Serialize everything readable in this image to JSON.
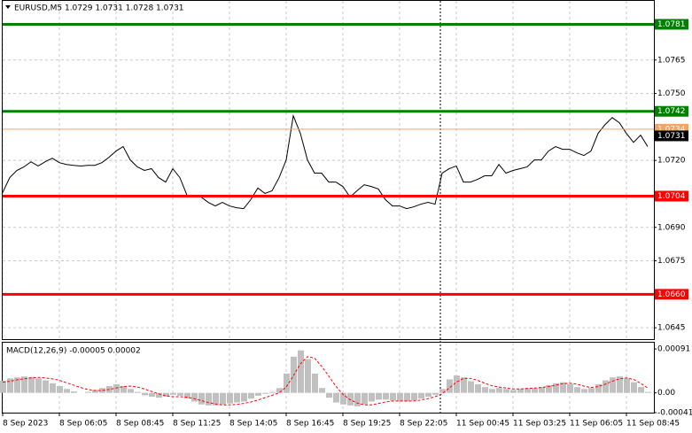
{
  "chart_data": [
    {
      "type": "line",
      "title": "EURUSD,M5  1.0729 1.0731 1.0728 1.0731",
      "x_labels": [
        "8 Sep 2023",
        "8 Sep 06:05",
        "8 Sep 08:45",
        "8 Sep 11:25",
        "8 Sep 14:05",
        "8 Sep 16:45",
        "8 Sep 19:25",
        "8 Sep 22:05",
        "11 Sep 00:45",
        "11 Sep 03:25",
        "11 Sep 06:05",
        "11 Sep 08:45"
      ],
      "series": [
        {
          "color": "#000000",
          "values": [
            1.07056,
            1.07123,
            1.07155,
            1.07171,
            1.07194,
            1.07175,
            1.07194,
            1.0721,
            1.0719,
            1.07182,
            1.07178,
            1.07175,
            1.07178,
            1.07178,
            1.0719,
            1.07214,
            1.07242,
            1.07262,
            1.07202,
            1.07171,
            1.07155,
            1.07163,
            1.07123,
            1.07103,
            1.07163,
            1.07123,
            1.07044,
            1.07036,
            1.07036,
            1.07012,
            1.06996,
            1.07012,
            1.06996,
            1.06988,
            1.06984,
            1.07024,
            1.07076,
            1.07052,
            1.07064,
            1.07123,
            1.07202,
            1.074,
            1.07321,
            1.07202,
            1.07143,
            1.07143,
            1.07103,
            1.07103,
            1.07083,
            1.07036,
            1.07064,
            1.07091,
            1.07083,
            1.07072,
            1.07024,
            1.06996,
            1.06996,
            1.06984,
            1.06992,
            1.07004,
            1.07012,
            1.07004,
            1.07143,
            1.07163,
            1.07175,
            1.07103,
            1.07103,
            1.07115,
            1.07131,
            1.07131,
            1.07182,
            1.07143,
            1.07155,
            1.07163,
            1.07171,
            1.07202,
            1.07202,
            1.07242,
            1.07262,
            1.0725,
            1.0725,
            1.07234,
            1.07222,
            1.07242,
            1.07321,
            1.07361,
            1.07392,
            1.07369,
            1.07321,
            1.07281,
            1.07313,
            1.07262
          ]
        }
      ],
      "ylim": [
        1.06399,
        1.07915
      ],
      "yticks": [
        1.0765,
        {
          "value": 1.075,
          "label": "1.0750"
        },
        {
          "value": 1.072,
          "label": "1.0720"
        },
        {
          "value": 1.069,
          "label": "1.0690"
        },
        1.0675,
        1.0645
      ],
      "grid": true,
      "levels": [
        {
          "value": 1.0781,
          "color": "#008000"
        },
        {
          "value": 1.0742,
          "color": "#008000"
        },
        {
          "value": 1.0734,
          "color": "#f4a460"
        },
        {
          "value": 1.0731,
          "color": "#000000"
        },
        {
          "value": 1.0704,
          "color": "#ff0000"
        },
        {
          "value": 1.066,
          "label": "1.0660",
          "color": "#ff0000"
        }
      ]
    },
    {
      "type": "macd",
      "title": "MACD(12,26,9) -0.00005 0.00002",
      "series": [
        {
          "color": "#c0c0c0",
          "values": [
            0.00025,
            0.0003,
            0.00032,
            0.00034,
            0.00033,
            0.0003,
            0.00026,
            0.0002,
            0.00014,
            8e-05,
            3e-05,
            0,
            2e-05,
            6e-05,
            0.0001,
            0.00014,
            0.00018,
            0.00014,
            8e-05,
            2e-05,
            -5e-05,
            -8e-05,
            -0.0001,
            -8e-05,
            -4e-05,
            -6e-05,
            -0.00012,
            -0.00018,
            -0.00024,
            -0.00026,
            -0.00026,
            -0.00024,
            -0.00022,
            -0.0002,
            -0.00018,
            -0.00012,
            -6e-05,
            -2e-05,
            2e-05,
            0.0001,
            0.0004,
            0.00075,
            0.00088,
            0.0007,
            0.0004,
            0.0001,
            -0.0001,
            -0.0002,
            -0.00024,
            -0.00026,
            -0.00028,
            -0.00024,
            -0.00018,
            -0.00014,
            -0.00014,
            -0.00016,
            -0.00018,
            -0.00018,
            -0.00016,
            -0.00012,
            -8e-05,
            -4e-05,
            8e-05,
            0.00028,
            0.00036,
            0.00032,
            0.00024,
            0.00018,
            0.00012,
            8e-05,
            0.0001,
            8e-05,
            6e-05,
            8e-05,
            0.0001,
            0.0001,
            0.00012,
            0.00016,
            0.0002,
            0.00022,
            0.00018,
            0.00012,
            8e-05,
            0.0001,
            0.00018,
            0.00026,
            0.00032,
            0.00034,
            0.0003,
            0.00022,
            0.00012,
            2e-05
          ]
        },
        {
          "color": "#ff0000",
          "values": [
            0.00022,
            0.00024,
            0.00027,
            0.00029,
            0.00031,
            0.00032,
            0.00031,
            0.00029,
            0.00026,
            0.00021,
            0.00016,
            0.00011,
            7e-05,
            5e-05,
            5e-05,
            7e-05,
            0.0001,
            0.00013,
            0.00014,
            0.00012,
            8e-05,
            3e-05,
            -2e-05,
            -6e-05,
            -8e-05,
            -8e-05,
            -9e-05,
            -0.00012,
            -0.00016,
            -0.0002,
            -0.00023,
            -0.00025,
            -0.00025,
            -0.00024,
            -0.00022,
            -0.00019,
            -0.00015,
            -0.0001,
            -5e-05,
            0,
            0.00012,
            0.00035,
            0.0006,
            0.00075,
            0.00072,
            0.00055,
            0.00035,
            0.00014,
            -3e-05,
            -0.00014,
            -0.00021,
            -0.00025,
            -0.00025,
            -0.00022,
            -0.00019,
            -0.00017,
            -0.00017,
            -0.00017,
            -0.00017,
            -0.00015,
            -0.00012,
            -8e-05,
            -2e-05,
            0.0001,
            0.00022,
            0.0003,
            0.0003,
            0.00026,
            0.0002,
            0.00015,
            0.00012,
            0.0001,
            8e-05,
            8e-05,
            9e-05,
            0.0001,
            0.00011,
            0.00013,
            0.00016,
            0.00019,
            0.0002,
            0.00018,
            0.00014,
            0.00011,
            0.00013,
            0.00018,
            0.00024,
            0.00029,
            0.00031,
            0.00028,
            0.0002,
            0.0001
          ]
        }
      ],
      "ylim": [
        -0.00041,
        0.00104
      ],
      "yticks": [
        0.00091,
        {
          "value": 0,
          "label": "0.00"
        },
        -0.00041
      ]
    }
  ]
}
